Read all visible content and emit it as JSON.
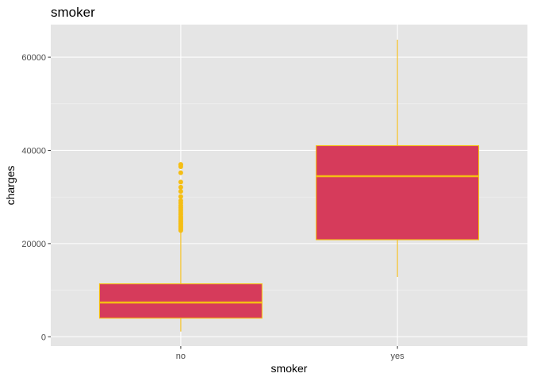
{
  "chart_data": {
    "type": "box",
    "title": "smoker",
    "xlabel": "smoker",
    "ylabel": "charges",
    "categories": [
      "no",
      "yes"
    ],
    "ylim": [
      -2000,
      67000
    ],
    "yticks": [
      0,
      20000,
      40000,
      60000
    ],
    "ytick_labels": [
      "0",
      "20000",
      "40000",
      "60000"
    ],
    "grid": true,
    "colors": {
      "panel_background": "#e5e5e5",
      "grid_major": "#ffffff",
      "grid_minor": "#f2f2f2",
      "box_fill": "#d63b5b",
      "box_outline": "#f5be14",
      "outlier": "#f5be14"
    },
    "boxes": [
      {
        "category": "no",
        "whisker_low": 1120,
        "q1": 3990,
        "median": 7350,
        "q3": 11360,
        "whisker_high": 22400,
        "outliers": [
          22800,
          23100,
          23400,
          23700,
          24000,
          24300,
          24600,
          24900,
          25200,
          25500,
          25800,
          26200,
          26600,
          27000,
          27400,
          27800,
          28200,
          28700,
          29200,
          30100,
          31200,
          32100,
          33200,
          35200,
          36500,
          36900,
          37000
        ]
      },
      {
        "category": "yes",
        "whisker_low": 12830,
        "q1": 20830,
        "median": 34460,
        "q3": 41020,
        "whisker_high": 63770,
        "outliers": []
      }
    ]
  }
}
